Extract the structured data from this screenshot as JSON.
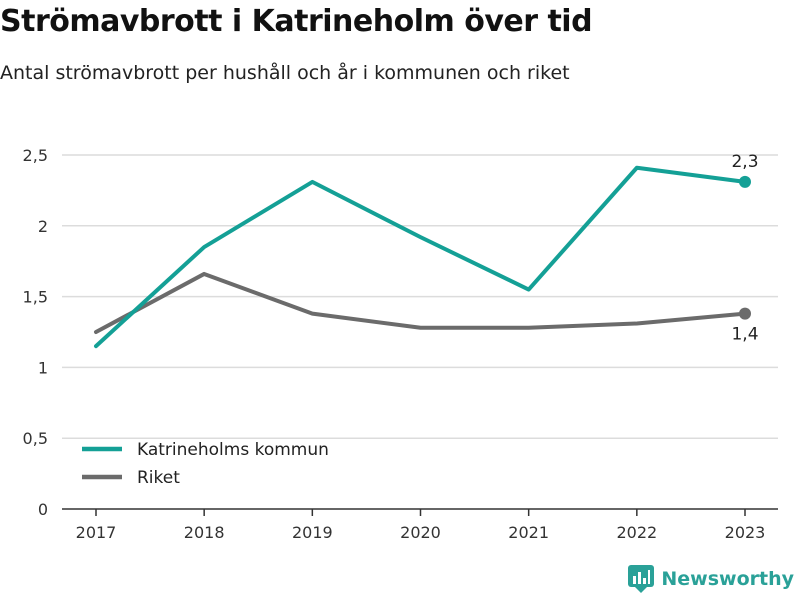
{
  "header": {
    "title": "Strömavbrott i Katrineholm över tid",
    "subtitle": "Antal strömavbrott per hushåll och år i kommunen och riket"
  },
  "brand": {
    "name": "Newsworthy",
    "icon": "newsworthy-logo-icon",
    "color": "#2aa198"
  },
  "chart_data": {
    "type": "line",
    "x": [
      "2017",
      "2018",
      "2019",
      "2020",
      "2021",
      "2022",
      "2023"
    ],
    "yticks": [
      "0",
      "0,5",
      "1",
      "1,5",
      "2",
      "2,5"
    ],
    "ytick_values": [
      0,
      0.5,
      1,
      1.5,
      2,
      2.5
    ],
    "ylim": [
      0,
      2.5
    ],
    "grid": true,
    "legend_position": "bottom-left",
    "series": [
      {
        "name": "Katrineholms kommun",
        "color": "#14a096",
        "values": [
          1.15,
          1.85,
          2.31,
          1.92,
          1.55,
          2.41,
          2.31
        ],
        "end_label": "2,3"
      },
      {
        "name": "Riket",
        "color": "#6b6b6b",
        "values": [
          1.25,
          1.66,
          1.38,
          1.28,
          1.28,
          1.31,
          1.38
        ],
        "end_label": "1,4"
      }
    ]
  }
}
